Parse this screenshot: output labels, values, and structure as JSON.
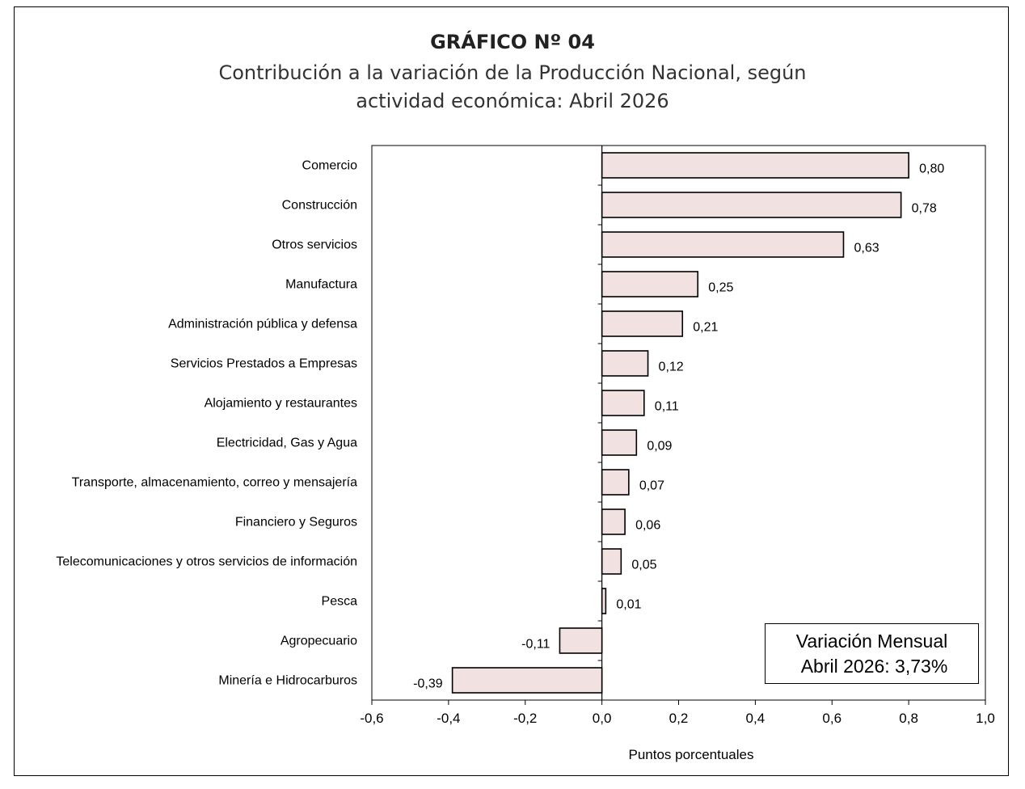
{
  "title": "GRÁFICO Nº 04",
  "subtitle_line1": "Contribución a la variación de la Producción Nacional, según",
  "subtitle_line2": "actividad económica: Abril 2026",
  "annotation": {
    "line1": "Variación Mensual",
    "line2": "Abril 2026: 3,73%"
  },
  "colors": {
    "bar_fill": "#f2e1e1",
    "bar_stroke": "#000000"
  },
  "chart_data": {
    "type": "bar",
    "orientation": "horizontal",
    "categories": [
      "Comercio",
      "Construcción",
      "Otros servicios",
      "Manufactura",
      "Administración pública y defensa",
      "Servicios Prestados a Empresas",
      "Alojamiento y restaurantes",
      "Electricidad, Gas y Agua",
      "Transporte, almacenamiento, correo y mensajería",
      "Financiero y Seguros",
      "Telecomunicaciones y otros servicios de información",
      "Pesca",
      "Agropecuario",
      "Minería e Hidrocarburos"
    ],
    "values": [
      0.8,
      0.78,
      0.63,
      0.25,
      0.21,
      0.12,
      0.11,
      0.09,
      0.07,
      0.06,
      0.05,
      0.01,
      -0.11,
      -0.39
    ],
    "value_labels": [
      "0,80",
      "0,78",
      "0,63",
      "0,25",
      "0,21",
      "0,12",
      "0,11",
      "0,09",
      "0,07",
      "0,06",
      "0,05",
      "0,01",
      "-0,11",
      "-0,39"
    ],
    "xlabel": "Puntos porcentuales",
    "xlim": [
      -0.6,
      1.0
    ],
    "xticks": [
      -0.6,
      -0.4,
      -0.2,
      0.0,
      0.2,
      0.4,
      0.6,
      0.8,
      1.0
    ],
    "xtick_labels": [
      "-0,6",
      "-0,4",
      "-0,2",
      "0,0",
      "0,2",
      "0,4",
      "0,6",
      "0,8",
      "1,0"
    ],
    "grid": false,
    "legend": "none"
  }
}
